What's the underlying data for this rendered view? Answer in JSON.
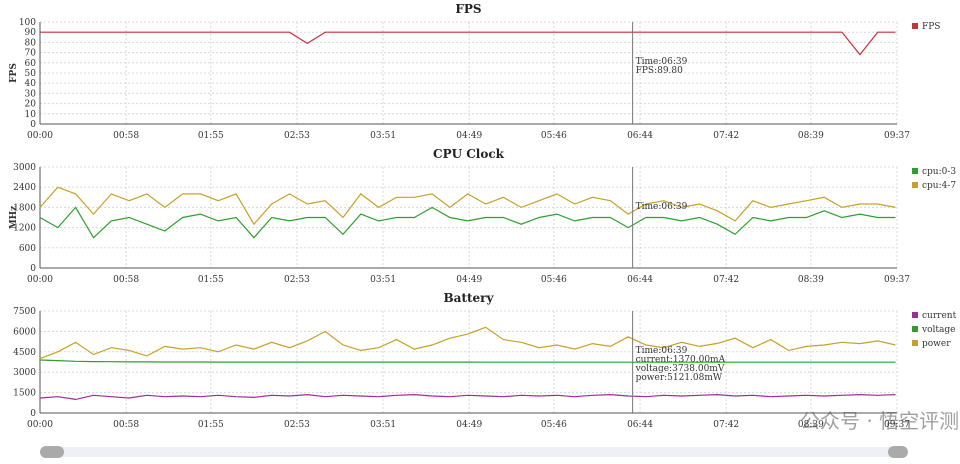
{
  "chart_data": [
    {
      "type": "line",
      "title": "FPS",
      "y_label": "FPS",
      "grid": true,
      "x": [
        0,
        12,
        24,
        36,
        48,
        60,
        72,
        84,
        96,
        108,
        120,
        132,
        144,
        156,
        168,
        180,
        192,
        204,
        216,
        228,
        240,
        252,
        264,
        276,
        288,
        300,
        312,
        324,
        336,
        348,
        360,
        372,
        384,
        396,
        408,
        420,
        432,
        444,
        456,
        468,
        480,
        492,
        504,
        516,
        528,
        540,
        552,
        564,
        576
      ],
      "xlim": [
        0,
        577
      ],
      "xticks": [
        {
          "value": 0,
          "label": "00:00"
        },
        {
          "value": 58,
          "label": "00:58"
        },
        {
          "value": 115,
          "label": "01:55"
        },
        {
          "value": 173,
          "label": "02:53"
        },
        {
          "value": 231,
          "label": "03:51"
        },
        {
          "value": 289,
          "label": "04:49"
        },
        {
          "value": 346,
          "label": "05:46"
        },
        {
          "value": 404,
          "label": "06:44"
        },
        {
          "value": 462,
          "label": "07:42"
        },
        {
          "value": 519,
          "label": "08:39"
        },
        {
          "value": 577,
          "label": "09:37"
        }
      ],
      "ylim": [
        0,
        100
      ],
      "yticks": [
        0,
        10,
        20,
        30,
        40,
        50,
        60,
        70,
        80,
        90,
        100
      ],
      "series": [
        {
          "name": "FPS",
          "color": "#c8323c",
          "values": [
            90,
            90,
            90,
            90,
            90,
            90,
            90,
            90,
            90,
            90,
            90,
            90,
            90,
            90,
            90,
            79,
            90,
            90,
            90,
            90,
            90,
            90,
            90,
            90,
            90,
            90,
            90,
            90,
            90,
            90,
            90,
            90,
            90,
            90,
            90,
            90,
            90,
            90,
            90,
            90,
            90,
            90,
            90,
            90,
            90,
            90,
            68,
            90,
            90
          ]
        }
      ],
      "cursor": {
        "x": 399,
        "labels": [
          "Time:06:39",
          "FPS:89.80"
        ]
      }
    },
    {
      "type": "line",
      "title": "CPU Clock",
      "y_label": "MHz",
      "grid": true,
      "x": [
        0,
        12,
        24,
        36,
        48,
        60,
        72,
        84,
        96,
        108,
        120,
        132,
        144,
        156,
        168,
        180,
        192,
        204,
        216,
        228,
        240,
        252,
        264,
        276,
        288,
        300,
        312,
        324,
        336,
        348,
        360,
        372,
        384,
        396,
        408,
        420,
        432,
        444,
        456,
        468,
        480,
        492,
        504,
        516,
        528,
        540,
        552,
        564,
        576
      ],
      "xlim": [
        0,
        577
      ],
      "xticks": [
        {
          "value": 0,
          "label": "00:00"
        },
        {
          "value": 58,
          "label": "00:58"
        },
        {
          "value": 115,
          "label": "01:55"
        },
        {
          "value": 173,
          "label": "02:53"
        },
        {
          "value": 231,
          "label": "03:51"
        },
        {
          "value": 289,
          "label": "04:49"
        },
        {
          "value": 346,
          "label": "05:46"
        },
        {
          "value": 404,
          "label": "06:44"
        },
        {
          "value": 462,
          "label": "07:42"
        },
        {
          "value": 519,
          "label": "08:39"
        },
        {
          "value": 577,
          "label": "09:37"
        }
      ],
      "ylim": [
        0,
        3000
      ],
      "yticks": [
        0,
        600,
        1200,
        1800,
        2400,
        3000
      ],
      "series": [
        {
          "name": "cpu:0-3",
          "color": "#2ca02c",
          "values": [
            1500,
            1200,
            1800,
            900,
            1400,
            1500,
            1300,
            1100,
            1500,
            1600,
            1400,
            1500,
            900,
            1500,
            1400,
            1500,
            1500,
            1000,
            1600,
            1400,
            1500,
            1500,
            1800,
            1500,
            1400,
            1500,
            1500,
            1300,
            1500,
            1600,
            1400,
            1500,
            1500,
            1200,
            1500,
            1500,
            1400,
            1500,
            1300,
            1000,
            1500,
            1400,
            1500,
            1500,
            1700,
            1500,
            1600,
            1500,
            1500
          ]
        },
        {
          "name": "cpu:4-7",
          "color": "#c8a028",
          "values": [
            1800,
            2400,
            2200,
            1600,
            2200,
            2000,
            2200,
            1800,
            2200,
            2200,
            2000,
            2200,
            1300,
            1900,
            2200,
            1900,
            2000,
            1500,
            2200,
            1800,
            2100,
            2100,
            2200,
            1800,
            2200,
            1900,
            2100,
            1800,
            2000,
            2200,
            1900,
            2100,
            2000,
            1600,
            1900,
            2000,
            1800,
            1900,
            1700,
            1400,
            2000,
            1800,
            1900,
            2000,
            2100,
            1800,
            1900,
            1900,
            1800
          ]
        }
      ],
      "cursor": {
        "x": 399,
        "labels": [
          "Time:06:39"
        ]
      }
    },
    {
      "type": "line",
      "title": "Battery",
      "grid": true,
      "x": [
        0,
        12,
        24,
        36,
        48,
        60,
        72,
        84,
        96,
        108,
        120,
        132,
        144,
        156,
        168,
        180,
        192,
        204,
        216,
        228,
        240,
        252,
        264,
        276,
        288,
        300,
        312,
        324,
        336,
        348,
        360,
        372,
        384,
        396,
        408,
        420,
        432,
        444,
        456,
        468,
        480,
        492,
        504,
        516,
        528,
        540,
        552,
        564,
        576
      ],
      "xlim": [
        0,
        577
      ],
      "xticks": [
        {
          "value": 0,
          "label": "00:00"
        },
        {
          "value": 58,
          "label": "00:58"
        },
        {
          "value": 115,
          "label": "01:55"
        },
        {
          "value": 173,
          "label": "02:53"
        },
        {
          "value": 231,
          "label": "03:51"
        },
        {
          "value": 289,
          "label": "04:49"
        },
        {
          "value": 346,
          "label": "05:46"
        },
        {
          "value": 404,
          "label": "06:44"
        },
        {
          "value": 462,
          "label": "07:42"
        },
        {
          "value": 519,
          "label": "08:39"
        },
        {
          "value": 577,
          "label": "09:37"
        }
      ],
      "ylim": [
        0,
        7500
      ],
      "yticks": [
        0,
        1500,
        3000,
        4500,
        6000,
        7500
      ],
      "series": [
        {
          "name": "current",
          "color": "#9b2c9b",
          "values": [
            1100,
            1200,
            1000,
            1300,
            1200,
            1100,
            1300,
            1200,
            1250,
            1200,
            1300,
            1200,
            1150,
            1300,
            1250,
            1350,
            1200,
            1300,
            1250,
            1200,
            1300,
            1350,
            1250,
            1200,
            1300,
            1250,
            1200,
            1300,
            1250,
            1300,
            1200,
            1300,
            1350,
            1250,
            1200,
            1300,
            1250,
            1300,
            1350,
            1250,
            1300,
            1200,
            1250,
            1300,
            1250,
            1300,
            1350,
            1300,
            1350
          ]
        },
        {
          "name": "voltage",
          "color": "#2ca02c",
          "values": [
            3900,
            3850,
            3800,
            3780,
            3770,
            3760,
            3760,
            3750,
            3750,
            3750,
            3745,
            3745,
            3745,
            3740,
            3740,
            3740,
            3740,
            3740,
            3740,
            3740,
            3740,
            3740,
            3740,
            3740,
            3740,
            3738,
            3738,
            3738,
            3738,
            3738,
            3738,
            3738,
            3738,
            3738,
            3738,
            3738,
            3738,
            3738,
            3738,
            3738,
            3738,
            3738,
            3738,
            3738,
            3738,
            3738,
            3738,
            3738,
            3738
          ]
        },
        {
          "name": "power",
          "color": "#c8a028",
          "values": [
            4000,
            4500,
            5200,
            4300,
            4800,
            4600,
            4200,
            4900,
            4700,
            4800,
            4500,
            5000,
            4700,
            5200,
            4800,
            5300,
            6000,
            5000,
            4600,
            4800,
            5400,
            4700,
            5000,
            5500,
            5800,
            6300,
            5400,
            5200,
            4800,
            5000,
            4700,
            5100,
            4900,
            5600,
            5000,
            4800,
            5200,
            4900,
            5121,
            5500,
            4800,
            5400,
            4600,
            4900,
            5000,
            5200,
            5100,
            5300,
            5000
          ]
        }
      ],
      "cursor": {
        "x": 399,
        "labels": [
          "Time:06:39",
          "current:1370.00mA",
          "voltage:3738.00mV",
          "power:5121.08mW"
        ]
      }
    }
  ],
  "watermark": "公众号 · 悟空评测"
}
